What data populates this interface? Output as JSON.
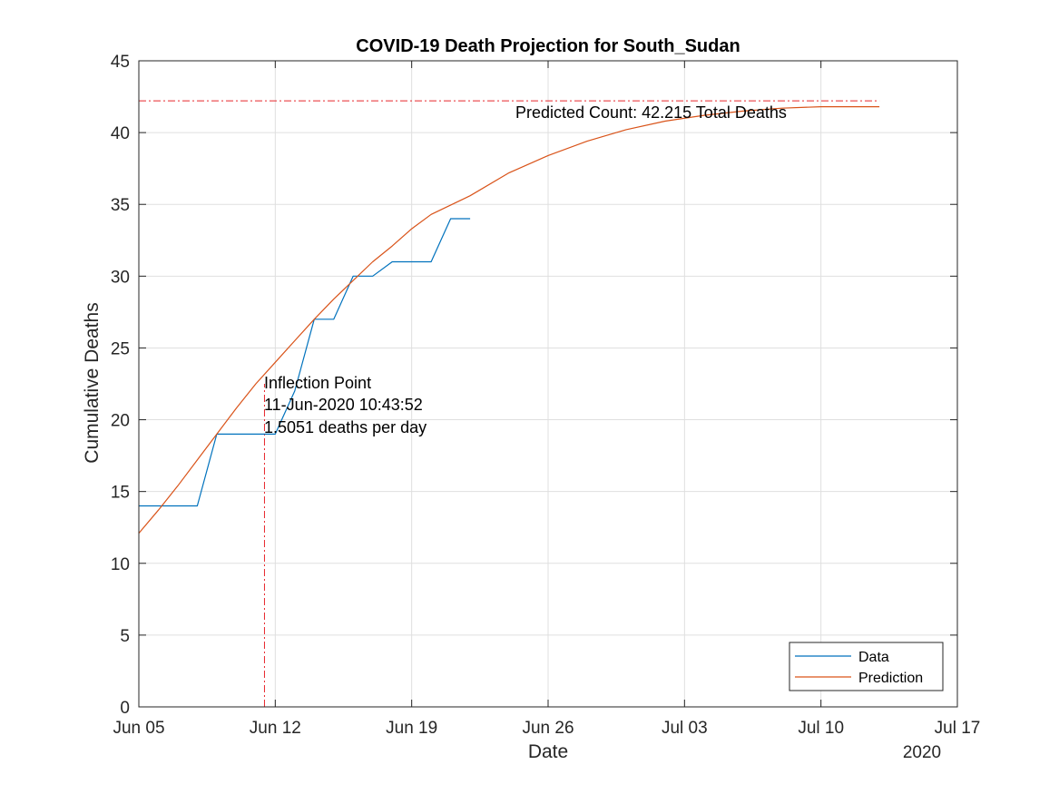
{
  "chart_data": {
    "type": "line",
    "title": "COVID-19 Death Projection for South_Sudan",
    "xlabel": "Date",
    "ylabel": "Cumulative Deaths",
    "x_tick_labels": [
      "Jun 05",
      "Jun 12",
      "Jun 19",
      "Jun 26",
      "Jul 03",
      "Jul 10",
      "Jul 17"
    ],
    "x_year_label": "2020",
    "xlim": [
      "2020-06-05",
      "2020-07-17"
    ],
    "y_ticks": [
      0,
      5,
      10,
      15,
      20,
      25,
      30,
      35,
      40,
      45
    ],
    "ylim": [
      0,
      45
    ],
    "grid": true,
    "legend_position": "bottom-right",
    "series": [
      {
        "name": "Data",
        "color": "#0072BD",
        "points": [
          [
            "2020-06-05",
            14
          ],
          [
            "2020-06-08",
            14
          ],
          [
            "2020-06-09",
            19
          ],
          [
            "2020-06-12",
            19
          ],
          [
            "2020-06-13",
            22
          ],
          [
            "2020-06-14",
            27
          ],
          [
            "2020-06-15",
            27
          ],
          [
            "2020-06-16",
            30
          ],
          [
            "2020-06-17",
            30
          ],
          [
            "2020-06-18",
            31
          ],
          [
            "2020-06-20",
            31
          ],
          [
            "2020-06-21",
            34
          ],
          [
            "2020-06-22",
            34
          ]
        ]
      },
      {
        "name": "Prediction",
        "color": "#D95319",
        "points": [
          [
            "2020-06-05",
            12.1
          ],
          [
            "2020-06-06",
            13.7
          ],
          [
            "2020-06-07",
            15.4
          ],
          [
            "2020-06-08",
            17.2
          ],
          [
            "2020-06-09",
            19.0
          ],
          [
            "2020-06-10",
            20.8
          ],
          [
            "2020-06-11",
            22.5
          ],
          [
            "2020-06-12",
            24.0
          ],
          [
            "2020-06-13",
            25.5
          ],
          [
            "2020-06-14",
            27.0
          ],
          [
            "2020-06-15",
            28.4
          ],
          [
            "2020-06-16",
            29.7
          ],
          [
            "2020-06-17",
            31.0
          ],
          [
            "2020-06-18",
            32.1
          ],
          [
            "2020-06-19",
            33.3
          ],
          [
            "2020-06-20",
            34.3
          ],
          [
            "2020-06-22",
            35.6
          ],
          [
            "2020-06-24",
            37.2
          ],
          [
            "2020-06-26",
            38.4
          ],
          [
            "2020-06-28",
            39.4
          ],
          [
            "2020-06-30",
            40.2
          ],
          [
            "2020-07-02",
            40.8
          ],
          [
            "2020-07-04",
            41.2
          ],
          [
            "2020-07-06",
            41.5
          ],
          [
            "2020-07-08",
            41.7
          ],
          [
            "2020-07-10",
            41.8
          ],
          [
            "2020-07-13",
            41.8
          ]
        ]
      }
    ],
    "reference_lines": {
      "predicted_total": {
        "y": 42.215,
        "x_end": "2020-07-13",
        "color": "#E8262B"
      },
      "inflection": {
        "x": "2020-06-11",
        "y_top": 22.5,
        "color": "#E8262B"
      }
    },
    "annotations": {
      "predicted_count": "Predicted Count: 42.215 Total Deaths",
      "inflection_lines": [
        "Inflection Point",
        "11-Jun-2020 10:43:52",
        "1.5051 deaths per day"
      ]
    }
  }
}
